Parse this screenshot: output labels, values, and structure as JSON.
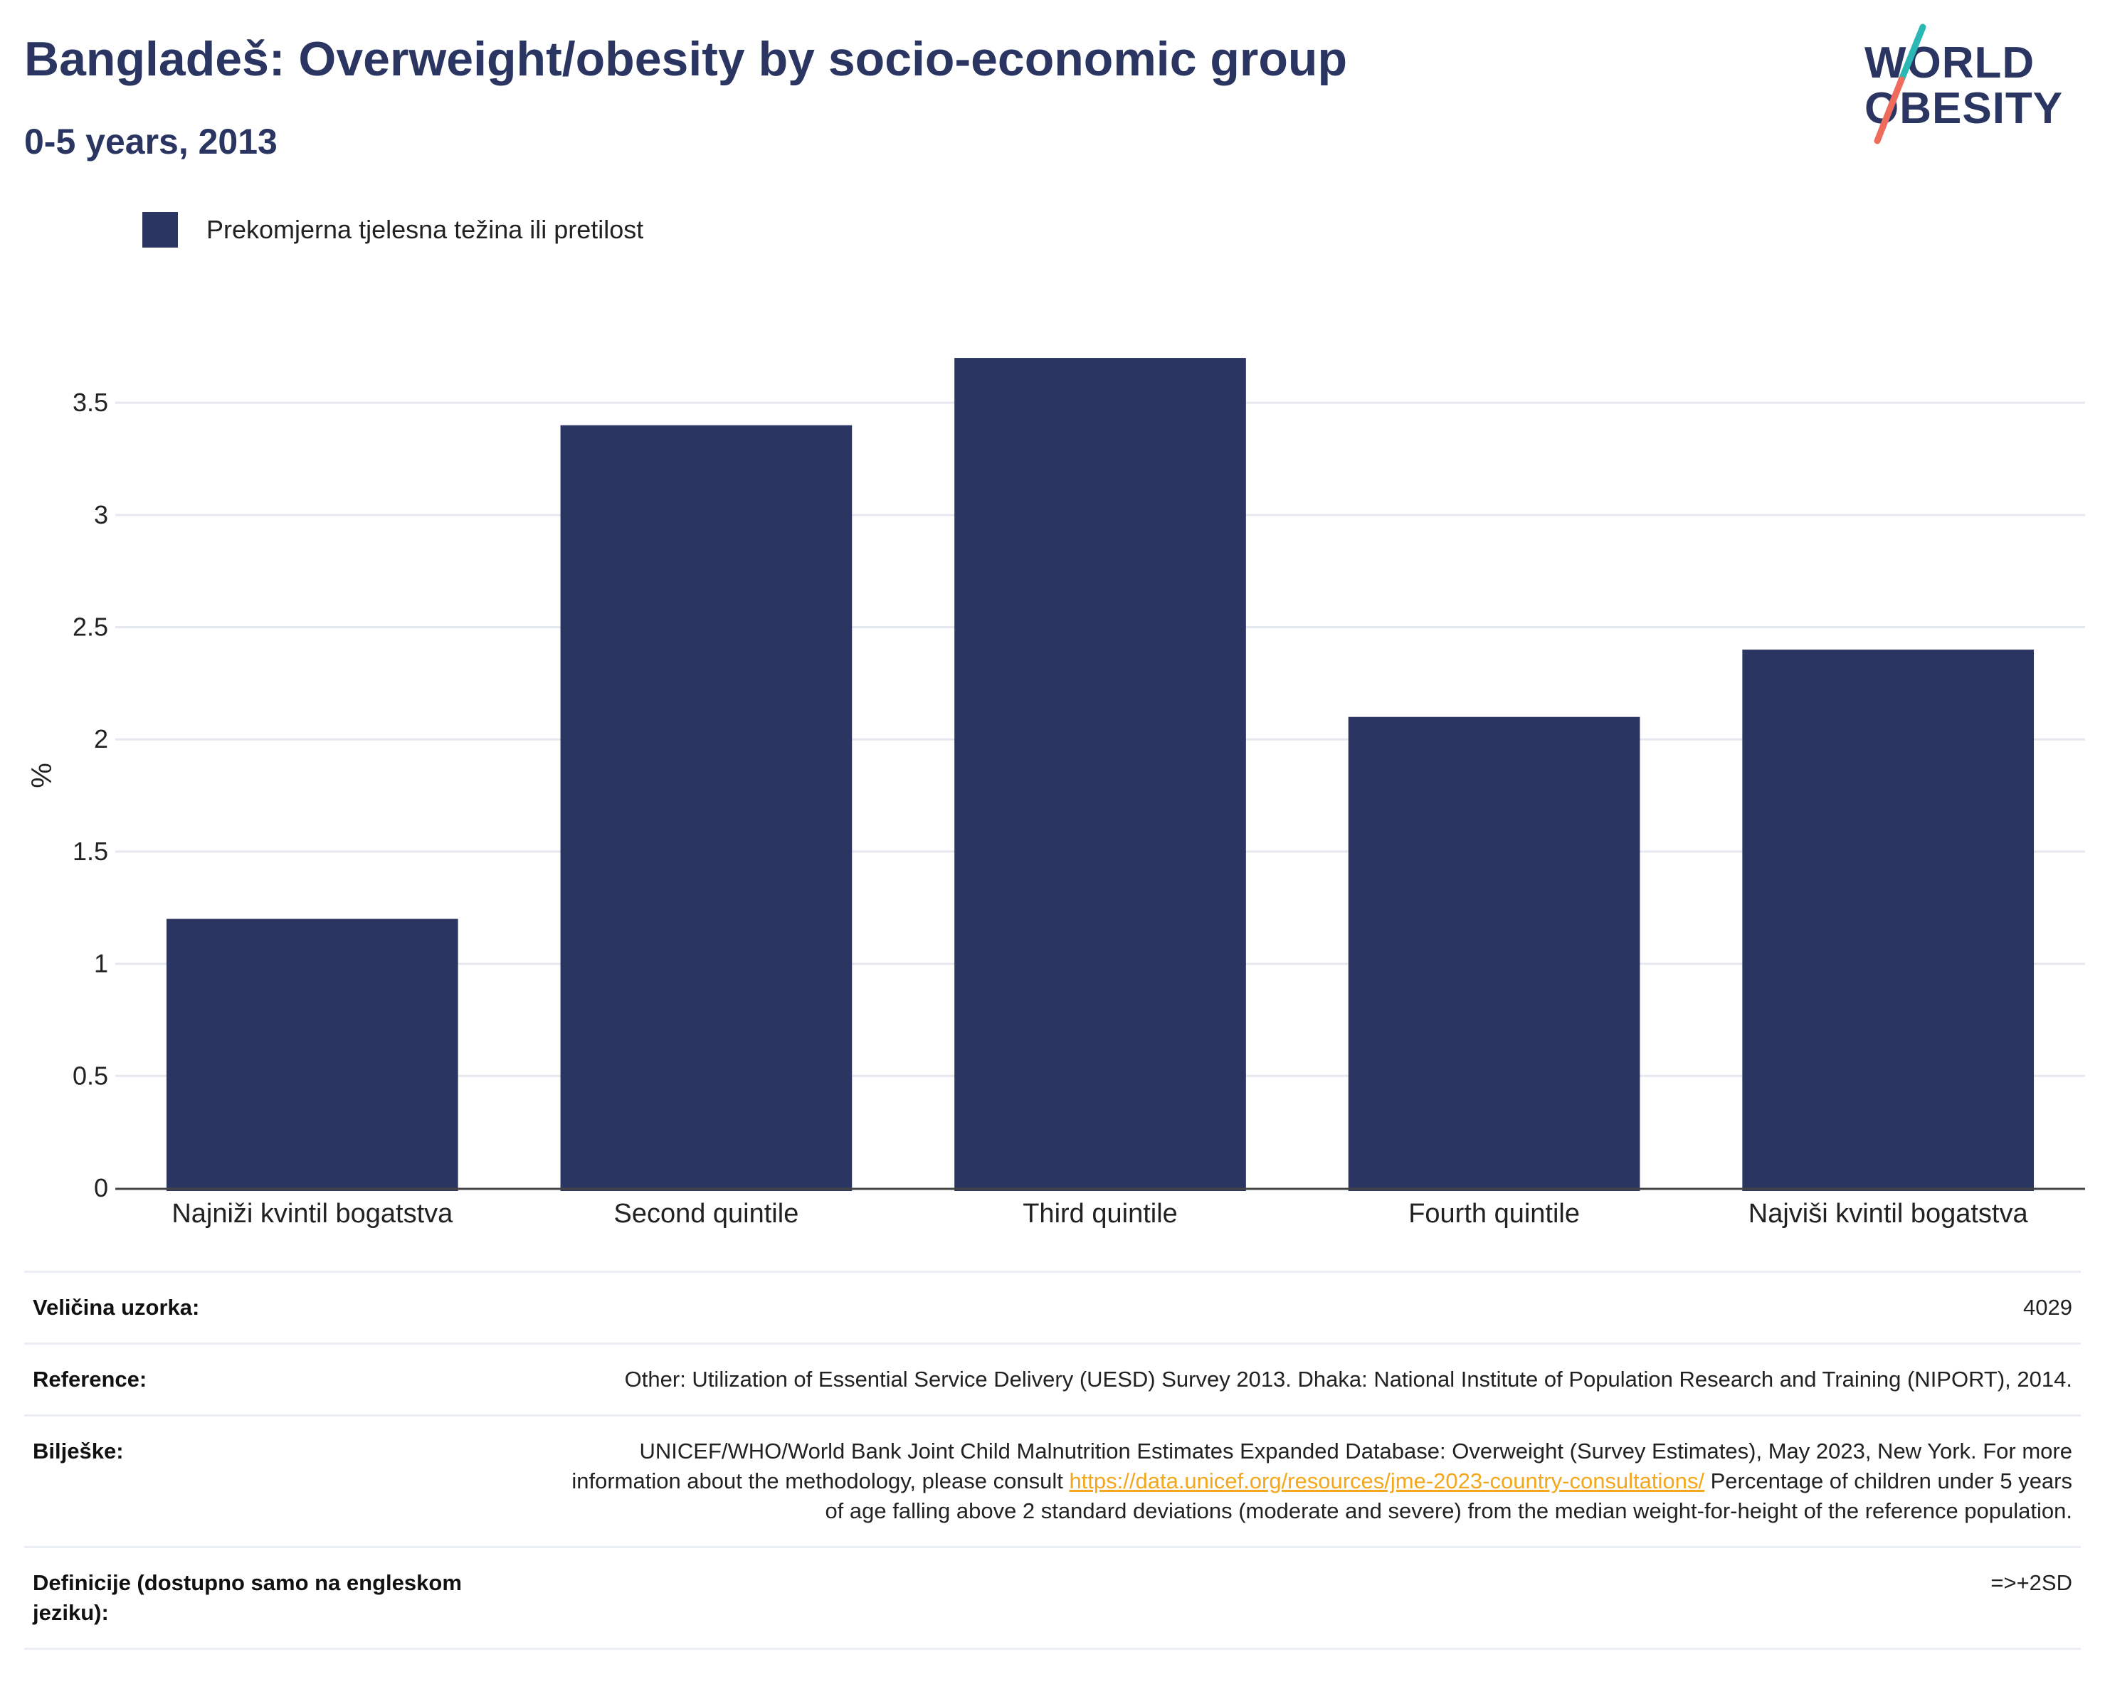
{
  "header": {
    "title": "Bangladeš: Overweight/obesity by socio-economic group",
    "subtitle": "0-5 years, 2013"
  },
  "logo": {
    "line1": "WORLD",
    "line2": "OBESITY",
    "colors": {
      "text": "#2a3561",
      "slash_top": "#2bb8b4",
      "slash_bottom": "#ef6b5b"
    }
  },
  "legend": {
    "label": "Prekomjerna tjelesna težina ili pretilost",
    "color": "#2a3561"
  },
  "chart_data": {
    "type": "bar",
    "categories": [
      "Najniži kvintil bogatstva",
      "Second quintile",
      "Third quintile",
      "Fourth quintile",
      "Najviši kvintil bogatstva"
    ],
    "series": [
      {
        "name": "Prekomjerna tjelesna težina ili pretilost",
        "values": [
          1.2,
          3.4,
          3.7,
          2.1,
          2.4
        ],
        "color": "#2a3561"
      }
    ],
    "ylabel": "%",
    "ylim": [
      0,
      3.9
    ],
    "yticks": [
      0,
      0.5,
      1,
      1.5,
      2,
      2.5,
      3,
      3.5
    ],
    "ytick_labels": [
      "0",
      "0.5",
      "1",
      "1.5",
      "2",
      "2.5",
      "3",
      "3.5"
    ],
    "grid": true,
    "legend_position": "top-left"
  },
  "info_table": {
    "sample_size": {
      "label": "Veličina uzorka:",
      "value": "4029"
    },
    "references": {
      "label": "Reference:",
      "value": "Other: Utilization of Essential Service Delivery (UESD) Survey 2013. Dhaka: National Institute of Population Research and Training (NIPORT), 2014."
    },
    "notes": {
      "label": "Bilješke:",
      "text_before_link": "UNICEF/WHO/World Bank Joint Child Malnutrition Estimates Expanded Database: Overweight (Survey Estimates), May 2023, New York. For more information about the methodology, please consult ",
      "link": "https://data.unicef.org/resources/jme-2023-country-consultations/",
      "text_after_link": " Percentage of children under 5 years of age falling above 2 standard deviations (moderate and severe) from the median weight-for-height of the reference population."
    },
    "definitions": {
      "label": "Definicije (dostupno samo na engleskom jeziku):",
      "value": "=>+2SD"
    }
  }
}
